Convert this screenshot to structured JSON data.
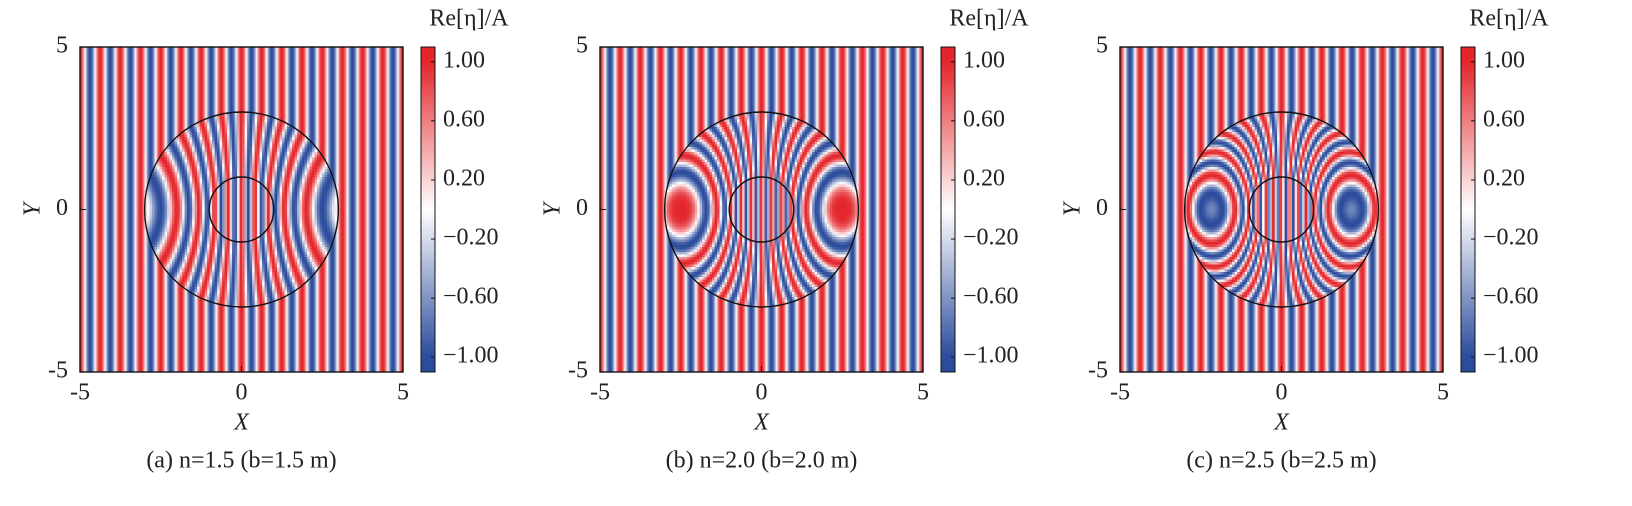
{
  "chart_data": [
    {
      "type": "heatmap",
      "caption": "(a) n=1.5 (b=1.5 m)",
      "n": 1.5,
      "xlabel": "X",
      "ylabel": "Y",
      "xlim": [
        -5,
        5
      ],
      "ylim": [
        -5,
        5
      ],
      "xticks": [
        -5,
        0,
        5
      ],
      "yticks": [
        -5,
        0,
        5
      ],
      "circle_radii": [
        1,
        3
      ],
      "wavelength": 0.625,
      "colormap": [
        "#2b4c9c",
        "#ffffff",
        "#e3262b"
      ],
      "colorbar": {
        "label": "Re[η]/A",
        "lim": [
          -1.1,
          1.1
        ],
        "ticks": [
          {
            "value": 1,
            "label": "1.00"
          },
          {
            "value": 0.6,
            "label": "0.60"
          },
          {
            "value": 0.2,
            "label": "0.20"
          },
          {
            "value": -0.2,
            "label": "−0.20"
          },
          {
            "value": -0.6,
            "label": "−0.60"
          },
          {
            "value": -1,
            "label": "−1.00"
          }
        ]
      }
    },
    {
      "type": "heatmap",
      "caption": "(b) n=2.0 (b=2.0 m)",
      "n": 2.0,
      "xlabel": "X",
      "ylabel": "Y",
      "xlim": [
        -5,
        5
      ],
      "ylim": [
        -5,
        5
      ],
      "xticks": [
        -5,
        0,
        5
      ],
      "yticks": [
        -5,
        0,
        5
      ],
      "circle_radii": [
        1,
        3
      ],
      "wavelength": 0.625,
      "colormap": [
        "#2b4c9c",
        "#ffffff",
        "#e3262b"
      ],
      "colorbar": {
        "label": "Re[η]/A",
        "lim": [
          -1.1,
          1.1
        ],
        "ticks": [
          {
            "value": 1,
            "label": "1.00"
          },
          {
            "value": 0.6,
            "label": "0.60"
          },
          {
            "value": 0.2,
            "label": "0.20"
          },
          {
            "value": -0.2,
            "label": "−0.20"
          },
          {
            "value": -0.6,
            "label": "−0.60"
          },
          {
            "value": -1,
            "label": "−1.00"
          }
        ]
      }
    },
    {
      "type": "heatmap",
      "caption": "(c) n=2.5 (b=2.5 m)",
      "n": 2.5,
      "xlabel": "X",
      "ylabel": "Y",
      "xlim": [
        -5,
        5
      ],
      "ylim": [
        -5,
        5
      ],
      "xticks": [
        -5,
        0,
        5
      ],
      "yticks": [
        -5,
        0,
        5
      ],
      "circle_radii": [
        1,
        3
      ],
      "wavelength": 0.625,
      "colormap": [
        "#2b4c9c",
        "#ffffff",
        "#e3262b"
      ],
      "colorbar": {
        "label": "Re[η]/A",
        "lim": [
          -1.1,
          1.1
        ],
        "ticks": [
          {
            "value": 1,
            "label": "1.00"
          },
          {
            "value": 0.6,
            "label": "0.60"
          },
          {
            "value": 0.2,
            "label": "0.20"
          },
          {
            "value": -0.2,
            "label": "−0.20"
          },
          {
            "value": -0.6,
            "label": "−0.60"
          },
          {
            "value": -1,
            "label": "−1.00"
          }
        ]
      }
    }
  ]
}
